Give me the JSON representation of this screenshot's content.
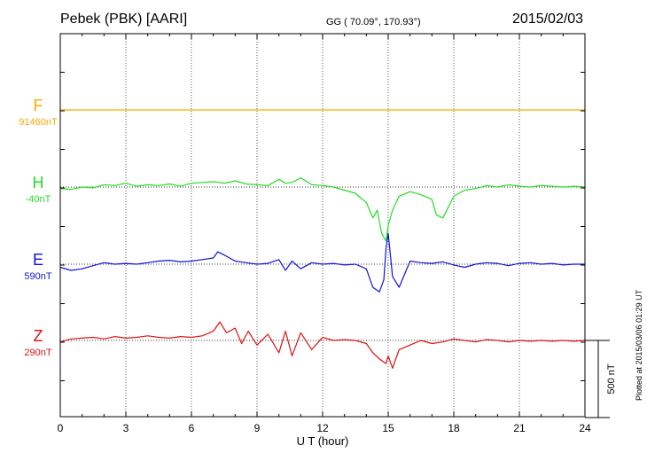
{
  "header": {
    "station": "Pebek (PBK)  [AARI]",
    "coords": "GG ( 70.09°, 170.93°)",
    "date": "2015/02/03",
    "plotted": "Plotted at 2015/03/06 01:29 UT"
  },
  "colors": {
    "F": "#ffaa00",
    "H": "#22dd22",
    "E": "#1111dd",
    "Z": "#dd1111",
    "grid": "#555555"
  },
  "chart_data": {
    "type": "line",
    "xlabel": "U T (hour)",
    "xlim": [
      0,
      24
    ],
    "xticks": [
      "0",
      "3",
      "6",
      "9",
      "12",
      "15",
      "18",
      "21",
      "24"
    ],
    "scale_bar": {
      "value_nT": 500,
      "label": "500 nT"
    },
    "series": [
      {
        "name": "F",
        "baseline": "91460nT",
        "x": [
          0,
          6,
          12,
          18,
          24
        ],
        "y": [
          0,
          0,
          0,
          0,
          0
        ]
      },
      {
        "name": "H",
        "baseline": "-40nT",
        "x": [
          0,
          0.5,
          1,
          1.5,
          2,
          2.5,
          3,
          3.5,
          4,
          4.5,
          5,
          5.5,
          6,
          6.5,
          7,
          7.5,
          8,
          8.5,
          9,
          9.5,
          10,
          10.3,
          10.6,
          11,
          11.5,
          12,
          12.5,
          13,
          13.5,
          14,
          14.3,
          14.5,
          14.7,
          14.9,
          15,
          15.2,
          15.5,
          16,
          16.5,
          17,
          17.2,
          17.5,
          18,
          18.5,
          19,
          19.5,
          20,
          20.5,
          21,
          21.5,
          22,
          22.5,
          23,
          23.5,
          24
        ],
        "y": [
          -10,
          -15,
          0,
          -5,
          15,
          10,
          25,
          5,
          15,
          10,
          20,
          5,
          25,
          30,
          35,
          25,
          40,
          20,
          15,
          10,
          50,
          25,
          30,
          60,
          15,
          10,
          0,
          -20,
          -40,
          -100,
          -200,
          -150,
          -300,
          -350,
          -250,
          -150,
          -60,
          -30,
          -50,
          -80,
          -180,
          -200,
          -60,
          -20,
          -10,
          10,
          0,
          15,
          5,
          0,
          10,
          5,
          0,
          5,
          0
        ]
      },
      {
        "name": "E",
        "baseline": "590nT",
        "x": [
          0,
          0.5,
          1,
          1.5,
          2,
          2.5,
          3,
          3.5,
          4,
          4.5,
          5,
          5.5,
          6,
          6.5,
          7,
          7.2,
          7.5,
          8,
          8.5,
          9,
          9.5,
          10,
          10.3,
          10.6,
          11,
          11.5,
          12,
          12.5,
          13,
          13.5,
          14,
          14.3,
          14.6,
          14.8,
          14.9,
          15,
          15.2,
          15.5,
          16,
          16.5,
          17,
          17.5,
          18,
          18.5,
          19,
          19.5,
          20,
          20.5,
          21,
          21.5,
          22,
          22.5,
          23,
          23.5,
          24
        ],
        "y": [
          -20,
          -40,
          -30,
          -10,
          10,
          0,
          5,
          0,
          10,
          20,
          25,
          15,
          20,
          30,
          40,
          80,
          60,
          20,
          10,
          0,
          5,
          30,
          -40,
          20,
          -30,
          10,
          0,
          5,
          -5,
          0,
          -30,
          -150,
          -180,
          -100,
          100,
          200,
          -80,
          -150,
          20,
          10,
          5,
          15,
          -5,
          -20,
          0,
          10,
          5,
          -10,
          5,
          10,
          0,
          5,
          -5,
          0,
          0
        ]
      },
      {
        "name": "Z",
        "baseline": "290nT",
        "x": [
          0,
          0.5,
          1,
          1.5,
          2,
          2.5,
          3,
          3.5,
          4,
          4.5,
          5,
          5.5,
          6,
          6.5,
          7,
          7.3,
          7.6,
          8,
          8.3,
          8.6,
          9,
          9.5,
          10,
          10.3,
          10.6,
          11,
          11.5,
          12,
          12.5,
          13,
          13.5,
          14,
          14.3,
          14.6,
          14.9,
          15,
          15.2,
          15.5,
          16,
          16.5,
          17,
          17.5,
          18,
          18.5,
          19,
          19.5,
          20,
          20.5,
          21,
          21.5,
          22,
          22.5,
          23,
          23.5,
          24
        ],
        "y": [
          -10,
          10,
          15,
          20,
          10,
          25,
          15,
          20,
          30,
          20,
          15,
          25,
          20,
          30,
          60,
          120,
          50,
          80,
          -20,
          60,
          -30,
          40,
          -80,
          60,
          -100,
          50,
          -60,
          20,
          0,
          5,
          0,
          -20,
          -80,
          -120,
          -150,
          -100,
          -180,
          -60,
          -30,
          0,
          -20,
          -10,
          10,
          0,
          -10,
          5,
          0,
          -10,
          0,
          -5,
          0,
          -5,
          0,
          -5,
          0
        ]
      }
    ]
  }
}
